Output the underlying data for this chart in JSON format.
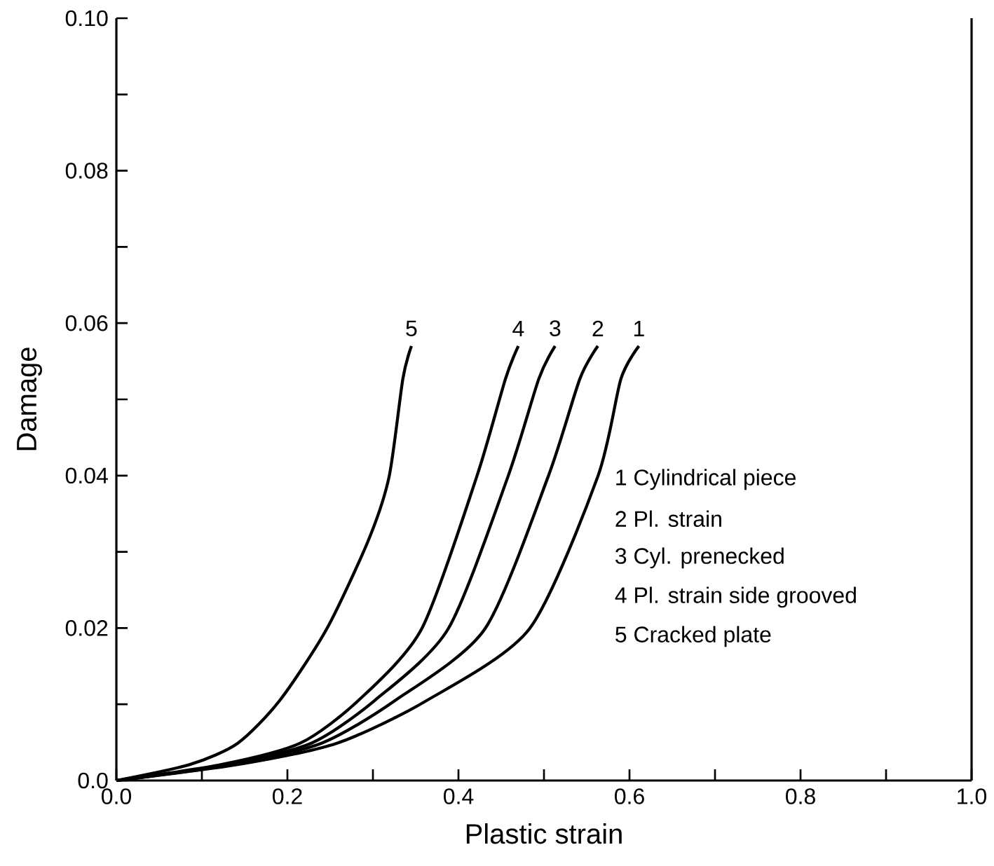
{
  "chart_data": {
    "type": "line",
    "xlabel": "Plastic strain",
    "ylabel": "Damage",
    "xlim": [
      0,
      1.0
    ],
    "ylim": [
      0,
      0.1
    ],
    "xticks": [
      {
        "value": 0,
        "label": "0.0"
      },
      {
        "value": 0.1,
        "label": null
      },
      {
        "value": 0.2,
        "label": "0.2"
      },
      {
        "value": 0.3,
        "label": null
      },
      {
        "value": 0.4,
        "label": "0.4"
      },
      {
        "value": 0.5,
        "label": null
      },
      {
        "value": 0.6,
        "label": "0.6"
      },
      {
        "value": 0.7,
        "label": null
      },
      {
        "value": 0.8,
        "label": "0.8"
      },
      {
        "value": 0.9,
        "label": null
      },
      {
        "value": 1.0,
        "label": "1.0"
      }
    ],
    "yticks": [
      {
        "value": 0,
        "label": "0.0"
      },
      {
        "value": 0.01,
        "label": null
      },
      0.02,
      {
        "value": 0.03,
        "label": null
      },
      0.04,
      {
        "value": 0.05,
        "label": null
      },
      0.06,
      {
        "value": 0.07,
        "label": null
      },
      0.08,
      {
        "value": 0.09,
        "label": null
      },
      {
        "value": 0.1,
        "label": "0.10"
      }
    ],
    "grid": false,
    "marker": "none",
    "line_style": "solid",
    "series": [
      {
        "name": "1",
        "color": "#000000",
        "x": [
          0,
          0.142,
          0.258,
          0.363,
          0.483,
          0.563,
          0.59,
          0.611
        ],
        "values": [
          0,
          0.0021,
          0.0049,
          0.0105,
          0.0199,
          0.0399,
          0.0527,
          0.057
        ]
      },
      {
        "name": "2",
        "color": "#000000",
        "x": [
          0,
          0.135,
          0.24,
          0.326,
          0.431,
          0.505,
          0.542,
          0.563
        ],
        "values": [
          0,
          0.0021,
          0.0049,
          0.0105,
          0.0199,
          0.0399,
          0.0527,
          0.057
        ]
      },
      {
        "name": "3",
        "color": "#000000",
        "x": [
          0,
          0.129,
          0.228,
          0.302,
          0.388,
          0.458,
          0.494,
          0.513
        ],
        "values": [
          0,
          0.0021,
          0.0049,
          0.0105,
          0.0199,
          0.0399,
          0.0527,
          0.057
        ]
      },
      {
        "name": "4",
        "color": "#000000",
        "x": [
          0,
          0.123,
          0.215,
          0.283,
          0.357,
          0.4215,
          0.455,
          0.47
        ],
        "values": [
          0,
          0.0021,
          0.0049,
          0.0105,
          0.0199,
          0.0399,
          0.0527,
          0.057
        ]
      },
      {
        "name": "5",
        "color": "#000000",
        "x": [
          0,
          0.086,
          0.142,
          0.191,
          0.246,
          0.295,
          0.319,
          0.335,
          0.345
        ],
        "values": [
          0,
          0.0021,
          0.0049,
          0.0105,
          0.0199,
          0.0316,
          0.0399,
          0.0527,
          0.057
        ]
      }
    ],
    "annotations": [
      "1  Cylindrical piece",
      "2  Pl. strain",
      "3  Cyl. prenecked",
      "4  Pl. strain side grooved",
      "5  Cracked plate"
    ]
  }
}
